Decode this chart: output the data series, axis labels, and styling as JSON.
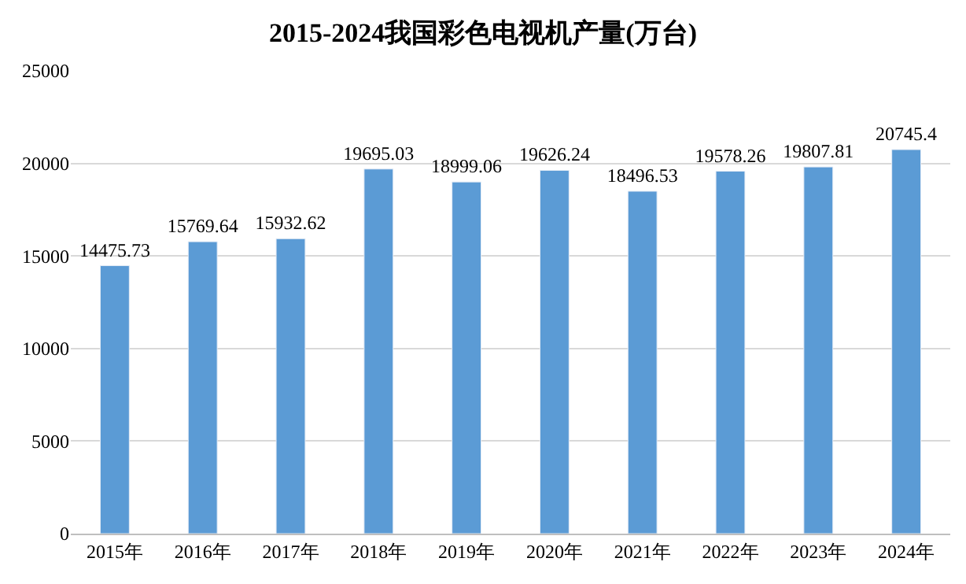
{
  "chart_data": {
    "type": "bar",
    "title": "2015-2024我国彩色电视机产量(万台)",
    "categories": [
      "2015年",
      "2016年",
      "2017年",
      "2018年",
      "2019年",
      "2020年",
      "2021年",
      "2022年",
      "2023年",
      "2024年"
    ],
    "values": [
      14475.73,
      15769.64,
      15932.62,
      19695.03,
      18999.06,
      19626.24,
      18496.53,
      19578.26,
      19807.81,
      20745.4
    ],
    "color": "#5b9bd5",
    "ylim": [
      0,
      25000
    ],
    "yticks": [
      0,
      5000,
      10000,
      15000,
      20000,
      25000
    ],
    "grid": "y",
    "data_labels": true
  }
}
